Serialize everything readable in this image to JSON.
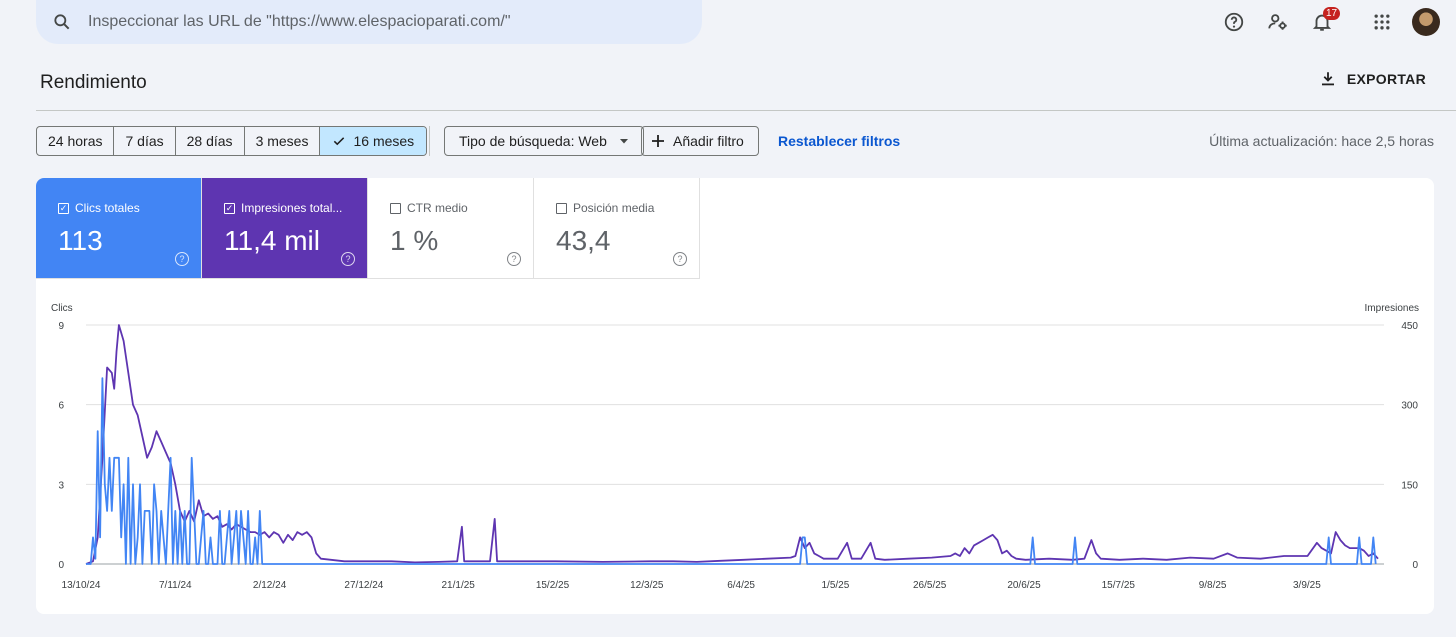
{
  "search": {
    "placeholder": "Inspeccionar las URL de \"https://www.elespacioparati.com/\""
  },
  "topbar": {
    "icons": [
      "help-icon",
      "manage-accounts-icon",
      "notifications-icon",
      "apps-icon"
    ],
    "notification_count": "17"
  },
  "page": {
    "title": "Rendimiento",
    "export_label": "EXPORTAR"
  },
  "filters": {
    "ranges": [
      "24 horas",
      "7 días",
      "28 días",
      "3 meses",
      "16 meses"
    ],
    "selected_range": "16 meses",
    "search_type": "Tipo de búsqueda: Web",
    "add_filter": "Añadir filtro",
    "reset": "Restablecer filtros",
    "last_update": "Última actualización: hace 2,5 horas"
  },
  "metrics": [
    {
      "label": "Clics totales",
      "value": "113",
      "checked": true,
      "color": "#4285f4"
    },
    {
      "label": "Impresiones total...",
      "value": "11,4 mil",
      "checked": true,
      "color": "#5e35b1"
    },
    {
      "label": "CTR medio",
      "value": "1 %",
      "checked": false,
      "color": "#ffffff"
    },
    {
      "label": "Posición media",
      "value": "43,4",
      "checked": false,
      "color": "#ffffff"
    }
  ],
  "chart_data": {
    "type": "line",
    "x": [
      "13/10/24",
      "7/11/24",
      "2/12/24",
      "27/12/24",
      "21/1/25",
      "15/2/25",
      "12/3/25",
      "6/4/25",
      "1/5/25",
      "26/5/25",
      "20/6/25",
      "15/7/25",
      "9/8/25",
      "3/9/25"
    ],
    "ylabel_left": "Clics",
    "ylabel_right": "Impresiones",
    "yticks_left": [
      "9",
      "6",
      "3",
      "0"
    ],
    "yticks_right": [
      "450",
      "300",
      "150",
      "0"
    ],
    "ylim_left": [
      0,
      9
    ],
    "ylim_right": [
      0,
      450
    ],
    "grid": true,
    "series": [
      {
        "name": "Clics totales",
        "color": "#4285f4",
        "axis": "left",
        "points": [
          [
            0,
            0
          ],
          [
            2,
            0
          ],
          [
            3,
            1
          ],
          [
            4,
            0.2
          ],
          [
            5,
            5
          ],
          [
            6,
            1
          ],
          [
            7,
            7
          ],
          [
            8,
            3
          ],
          [
            9,
            2
          ],
          [
            10,
            4
          ],
          [
            11,
            2
          ],
          [
            12,
            4
          ],
          [
            13,
            4
          ],
          [
            14,
            4
          ],
          [
            15,
            1
          ],
          [
            16,
            3
          ],
          [
            17,
            0
          ],
          [
            18,
            4
          ],
          [
            19,
            0
          ],
          [
            20,
            3
          ],
          [
            21,
            0
          ],
          [
            22,
            1
          ],
          [
            23,
            3
          ],
          [
            24,
            0
          ],
          [
            25,
            2
          ],
          [
            26,
            2
          ],
          [
            27,
            2
          ],
          [
            28,
            0
          ],
          [
            29,
            3
          ],
          [
            30,
            2
          ],
          [
            31,
            0
          ],
          [
            32,
            2
          ],
          [
            33,
            1
          ],
          [
            34,
            0
          ],
          [
            35,
            2
          ],
          [
            36,
            4
          ],
          [
            37,
            0
          ],
          [
            38,
            2
          ],
          [
            39,
            0
          ],
          [
            40,
            2
          ],
          [
            41,
            0
          ],
          [
            42,
            2
          ],
          [
            43,
            0
          ],
          [
            44,
            0
          ],
          [
            45,
            4
          ],
          [
            46,
            2
          ],
          [
            47,
            0
          ],
          [
            48,
            0
          ],
          [
            49,
            1
          ],
          [
            50,
            2
          ],
          [
            51,
            0
          ],
          [
            52,
            0
          ],
          [
            53,
            1
          ],
          [
            54,
            0
          ],
          [
            55,
            0
          ],
          [
            56,
            0
          ],
          [
            57,
            2
          ],
          [
            58,
            0
          ],
          [
            59,
            0
          ],
          [
            60,
            1
          ],
          [
            61,
            2
          ],
          [
            62,
            0
          ],
          [
            63,
            1
          ],
          [
            64,
            2
          ],
          [
            65,
            0
          ],
          [
            66,
            2
          ],
          [
            67,
            1
          ],
          [
            68,
            0
          ],
          [
            69,
            2
          ],
          [
            70,
            0
          ],
          [
            71,
            0
          ],
          [
            72,
            1
          ],
          [
            73,
            0
          ],
          [
            74,
            2
          ],
          [
            75,
            0
          ],
          [
            80,
            0
          ],
          [
            100,
            0
          ],
          [
            140,
            0
          ],
          [
            150,
            0
          ],
          [
            200,
            0
          ],
          [
            250,
            0
          ],
          [
            304,
            0
          ],
          [
            305,
            1
          ],
          [
            306,
            1
          ],
          [
            307,
            0
          ],
          [
            400,
            0
          ],
          [
            402,
            0
          ],
          [
            403,
            1
          ],
          [
            404,
            0
          ],
          [
            420,
            0
          ],
          [
            421,
            1
          ],
          [
            422,
            0
          ],
          [
            480,
            0
          ],
          [
            528,
            0
          ],
          [
            529,
            1
          ],
          [
            530,
            0
          ],
          [
            531,
            0
          ],
          [
            540,
            0
          ],
          [
            541,
            0
          ],
          [
            542,
            1
          ],
          [
            543,
            0
          ],
          [
            547,
            0
          ],
          [
            548,
            1
          ],
          [
            549,
            0
          ]
        ]
      },
      {
        "name": "Impresiones totales",
        "color": "#5e35b1",
        "axis": "right",
        "points": [
          [
            0,
            0
          ],
          [
            3,
            5
          ],
          [
            5,
            50
          ],
          [
            7,
            200
          ],
          [
            9,
            370
          ],
          [
            11,
            360
          ],
          [
            12,
            330
          ],
          [
            13,
            400
          ],
          [
            14,
            450
          ],
          [
            16,
            420
          ],
          [
            18,
            360
          ],
          [
            20,
            300
          ],
          [
            22,
            280
          ],
          [
            24,
            240
          ],
          [
            26,
            200
          ],
          [
            28,
            220
          ],
          [
            30,
            250
          ],
          [
            32,
            230
          ],
          [
            34,
            210
          ],
          [
            36,
            190
          ],
          [
            38,
            150
          ],
          [
            40,
            100
          ],
          [
            42,
            80
          ],
          [
            44,
            100
          ],
          [
            46,
            80
          ],
          [
            48,
            120
          ],
          [
            50,
            90
          ],
          [
            52,
            95
          ],
          [
            54,
            85
          ],
          [
            56,
            90
          ],
          [
            58,
            70
          ],
          [
            60,
            75
          ],
          [
            62,
            65
          ],
          [
            64,
            75
          ],
          [
            66,
            70
          ],
          [
            68,
            65
          ],
          [
            70,
            60
          ],
          [
            72,
            60
          ],
          [
            74,
            55
          ],
          [
            76,
            60
          ],
          [
            78,
            50
          ],
          [
            80,
            60
          ],
          [
            82,
            55
          ],
          [
            84,
            40
          ],
          [
            86,
            55
          ],
          [
            88,
            45
          ],
          [
            90,
            60
          ],
          [
            92,
            55
          ],
          [
            94,
            60
          ],
          [
            96,
            50
          ],
          [
            98,
            20
          ],
          [
            100,
            10
          ],
          [
            110,
            5
          ],
          [
            120,
            5
          ],
          [
            130,
            5
          ],
          [
            140,
            3
          ],
          [
            150,
            4
          ],
          [
            158,
            5
          ],
          [
            160,
            70
          ],
          [
            161,
            5
          ],
          [
            172,
            5
          ],
          [
            174,
            85
          ],
          [
            175,
            5
          ],
          [
            176,
            5
          ],
          [
            180,
            5
          ],
          [
            200,
            5
          ],
          [
            220,
            4
          ],
          [
            240,
            5
          ],
          [
            250,
            5
          ],
          [
            260,
            4
          ],
          [
            270,
            6
          ],
          [
            280,
            8
          ],
          [
            290,
            10
          ],
          [
            300,
            12
          ],
          [
            302,
            15
          ],
          [
            304,
            50
          ],
          [
            306,
            30
          ],
          [
            308,
            40
          ],
          [
            310,
            20
          ],
          [
            312,
            15
          ],
          [
            314,
            10
          ],
          [
            320,
            10
          ],
          [
            324,
            40
          ],
          [
            326,
            10
          ],
          [
            330,
            10
          ],
          [
            334,
            40
          ],
          [
            336,
            10
          ],
          [
            340,
            8
          ],
          [
            350,
            10
          ],
          [
            360,
            12
          ],
          [
            368,
            15
          ],
          [
            370,
            20
          ],
          [
            372,
            15
          ],
          [
            374,
            30
          ],
          [
            376,
            20
          ],
          [
            378,
            35
          ],
          [
            380,
            40
          ],
          [
            382,
            45
          ],
          [
            384,
            50
          ],
          [
            386,
            55
          ],
          [
            388,
            45
          ],
          [
            390,
            20
          ],
          [
            392,
            25
          ],
          [
            394,
            15
          ],
          [
            396,
            10
          ],
          [
            400,
            8
          ],
          [
            410,
            10
          ],
          [
            420,
            8
          ],
          [
            425,
            10
          ],
          [
            428,
            45
          ],
          [
            430,
            20
          ],
          [
            432,
            10
          ],
          [
            440,
            8
          ],
          [
            450,
            10
          ],
          [
            460,
            8
          ],
          [
            470,
            12
          ],
          [
            480,
            10
          ],
          [
            486,
            20
          ],
          [
            490,
            12
          ],
          [
            500,
            10
          ],
          [
            510,
            15
          ],
          [
            520,
            15
          ],
          [
            524,
            40
          ],
          [
            526,
            30
          ],
          [
            528,
            25
          ],
          [
            530,
            20
          ],
          [
            532,
            60
          ],
          [
            534,
            45
          ],
          [
            536,
            35
          ],
          [
            538,
            30
          ],
          [
            540,
            30
          ],
          [
            542,
            30
          ],
          [
            544,
            25
          ],
          [
            546,
            15
          ],
          [
            548,
            20
          ],
          [
            550,
            10
          ]
        ]
      }
    ]
  }
}
